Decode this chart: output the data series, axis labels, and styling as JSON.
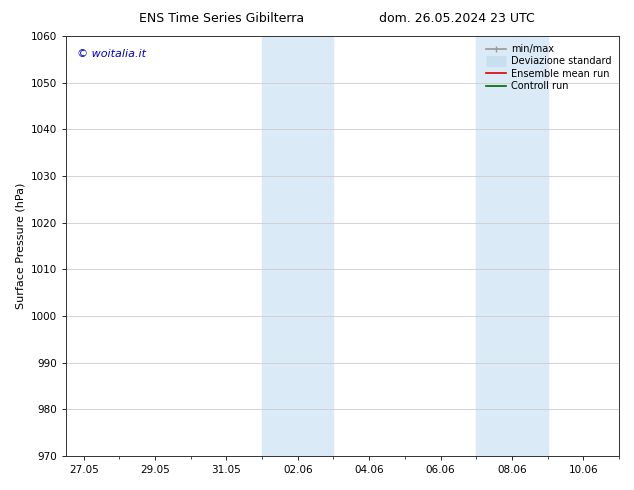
{
  "title_left": "ENS Time Series Gibilterra",
  "title_right": "dom. 26.05.2024 23 UTC",
  "ylabel": "Surface Pressure (hPa)",
  "ylim": [
    970,
    1060
  ],
  "yticks": [
    970,
    980,
    990,
    1000,
    1010,
    1020,
    1030,
    1040,
    1050,
    1060
  ],
  "xtick_labels": [
    "27.05",
    "29.05",
    "31.05",
    "02.06",
    "04.06",
    "06.06",
    "08.06",
    "10.06"
  ],
  "xtick_positions": [
    0,
    2,
    4,
    6,
    8,
    10,
    12,
    14
  ],
  "xlim": [
    -0.5,
    15.0
  ],
  "shaded_bands": [
    {
      "x_start": 5.0,
      "x_end": 7.0
    },
    {
      "x_start": 11.0,
      "x_end": 13.0
    }
  ],
  "shaded_color": "#daeaf7",
  "watermark_text": "© woitalia.it",
  "watermark_color": "#0000cc",
  "legend_entries": [
    {
      "label": "min/max",
      "color": "#999999",
      "lw": 1.2,
      "ls": "-",
      "type": "line_caps"
    },
    {
      "label": "Deviazione standard",
      "color": "#c8dff0",
      "lw": 8,
      "ls": "-",
      "type": "band"
    },
    {
      "label": "Ensemble mean run",
      "color": "#dd0000",
      "lw": 1.2,
      "ls": "-",
      "type": "line"
    },
    {
      "label": "Controll run",
      "color": "#006600",
      "lw": 1.2,
      "ls": "-",
      "type": "line"
    }
  ],
  "bg_color": "#ffffff",
  "plot_bg_color": "#ffffff",
  "grid_color": "#cccccc",
  "title_fontsize": 9,
  "tick_fontsize": 7.5,
  "ylabel_fontsize": 8,
  "watermark_fontsize": 8,
  "legend_fontsize": 7
}
